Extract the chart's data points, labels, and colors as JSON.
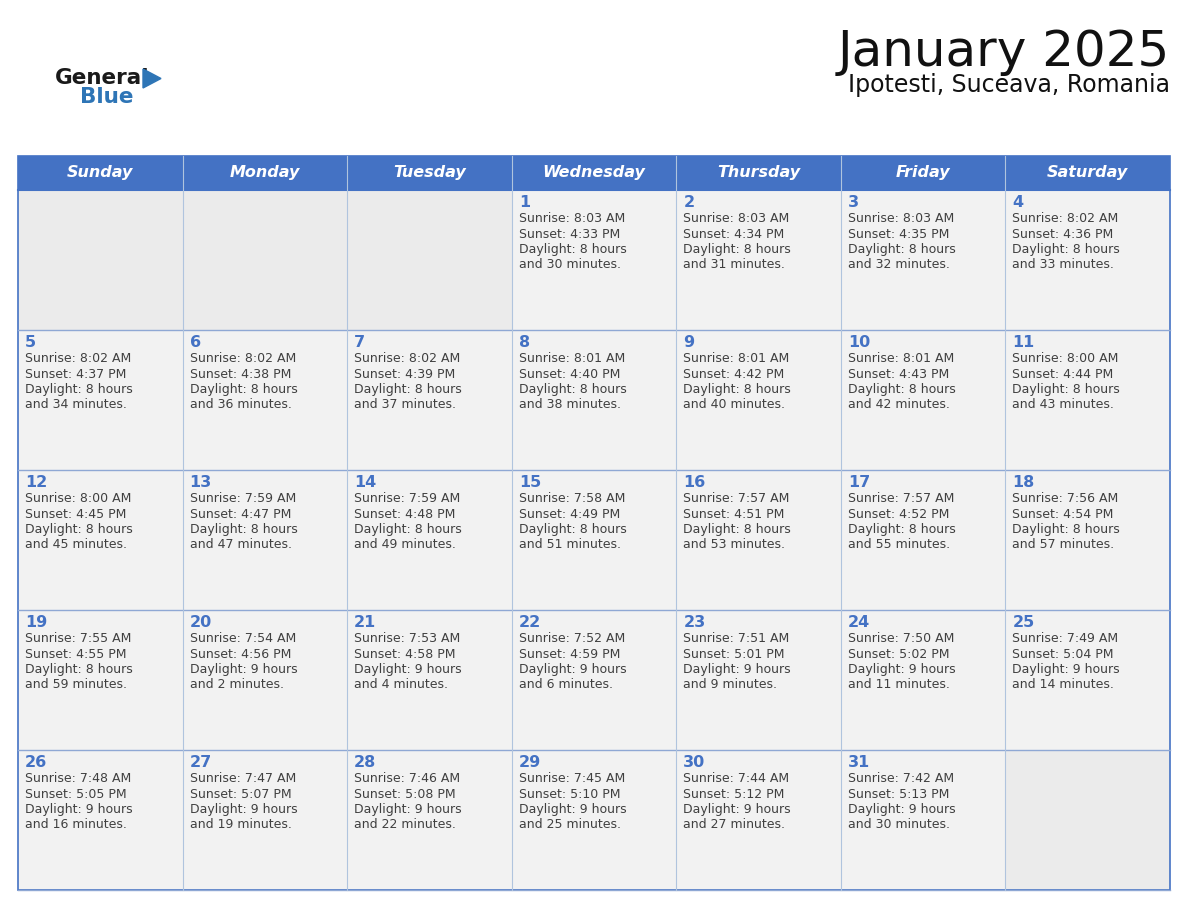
{
  "title": "January 2025",
  "subtitle": "Ipotesti, Suceava, Romania",
  "header_color": "#4472C4",
  "header_text_color": "#FFFFFF",
  "cell_bg_filled": "#F2F2F2",
  "cell_bg_empty": "#EBEBEB",
  "cell_border_color": "#4472C4",
  "row_divider_color": "#4472C4",
  "day_number_color": "#4472C4",
  "text_color": "#404040",
  "days_of_week": [
    "Sunday",
    "Monday",
    "Tuesday",
    "Wednesday",
    "Thursday",
    "Friday",
    "Saturday"
  ],
  "logo_general_color": "#1a1a1a",
  "logo_blue_color": "#2E75B6",
  "calendar_data": [
    [
      {
        "day": "",
        "lines": []
      },
      {
        "day": "",
        "lines": []
      },
      {
        "day": "",
        "lines": []
      },
      {
        "day": "1",
        "lines": [
          "Sunrise: 8:03 AM",
          "Sunset: 4:33 PM",
          "Daylight: 8 hours",
          "and 30 minutes."
        ]
      },
      {
        "day": "2",
        "lines": [
          "Sunrise: 8:03 AM",
          "Sunset: 4:34 PM",
          "Daylight: 8 hours",
          "and 31 minutes."
        ]
      },
      {
        "day": "3",
        "lines": [
          "Sunrise: 8:03 AM",
          "Sunset: 4:35 PM",
          "Daylight: 8 hours",
          "and 32 minutes."
        ]
      },
      {
        "day": "4",
        "lines": [
          "Sunrise: 8:02 AM",
          "Sunset: 4:36 PM",
          "Daylight: 8 hours",
          "and 33 minutes."
        ]
      }
    ],
    [
      {
        "day": "5",
        "lines": [
          "Sunrise: 8:02 AM",
          "Sunset: 4:37 PM",
          "Daylight: 8 hours",
          "and 34 minutes."
        ]
      },
      {
        "day": "6",
        "lines": [
          "Sunrise: 8:02 AM",
          "Sunset: 4:38 PM",
          "Daylight: 8 hours",
          "and 36 minutes."
        ]
      },
      {
        "day": "7",
        "lines": [
          "Sunrise: 8:02 AM",
          "Sunset: 4:39 PM",
          "Daylight: 8 hours",
          "and 37 minutes."
        ]
      },
      {
        "day": "8",
        "lines": [
          "Sunrise: 8:01 AM",
          "Sunset: 4:40 PM",
          "Daylight: 8 hours",
          "and 38 minutes."
        ]
      },
      {
        "day": "9",
        "lines": [
          "Sunrise: 8:01 AM",
          "Sunset: 4:42 PM",
          "Daylight: 8 hours",
          "and 40 minutes."
        ]
      },
      {
        "day": "10",
        "lines": [
          "Sunrise: 8:01 AM",
          "Sunset: 4:43 PM",
          "Daylight: 8 hours",
          "and 42 minutes."
        ]
      },
      {
        "day": "11",
        "lines": [
          "Sunrise: 8:00 AM",
          "Sunset: 4:44 PM",
          "Daylight: 8 hours",
          "and 43 minutes."
        ]
      }
    ],
    [
      {
        "day": "12",
        "lines": [
          "Sunrise: 8:00 AM",
          "Sunset: 4:45 PM",
          "Daylight: 8 hours",
          "and 45 minutes."
        ]
      },
      {
        "day": "13",
        "lines": [
          "Sunrise: 7:59 AM",
          "Sunset: 4:47 PM",
          "Daylight: 8 hours",
          "and 47 minutes."
        ]
      },
      {
        "day": "14",
        "lines": [
          "Sunrise: 7:59 AM",
          "Sunset: 4:48 PM",
          "Daylight: 8 hours",
          "and 49 minutes."
        ]
      },
      {
        "day": "15",
        "lines": [
          "Sunrise: 7:58 AM",
          "Sunset: 4:49 PM",
          "Daylight: 8 hours",
          "and 51 minutes."
        ]
      },
      {
        "day": "16",
        "lines": [
          "Sunrise: 7:57 AM",
          "Sunset: 4:51 PM",
          "Daylight: 8 hours",
          "and 53 minutes."
        ]
      },
      {
        "day": "17",
        "lines": [
          "Sunrise: 7:57 AM",
          "Sunset: 4:52 PM",
          "Daylight: 8 hours",
          "and 55 minutes."
        ]
      },
      {
        "day": "18",
        "lines": [
          "Sunrise: 7:56 AM",
          "Sunset: 4:54 PM",
          "Daylight: 8 hours",
          "and 57 minutes."
        ]
      }
    ],
    [
      {
        "day": "19",
        "lines": [
          "Sunrise: 7:55 AM",
          "Sunset: 4:55 PM",
          "Daylight: 8 hours",
          "and 59 minutes."
        ]
      },
      {
        "day": "20",
        "lines": [
          "Sunrise: 7:54 AM",
          "Sunset: 4:56 PM",
          "Daylight: 9 hours",
          "and 2 minutes."
        ]
      },
      {
        "day": "21",
        "lines": [
          "Sunrise: 7:53 AM",
          "Sunset: 4:58 PM",
          "Daylight: 9 hours",
          "and 4 minutes."
        ]
      },
      {
        "day": "22",
        "lines": [
          "Sunrise: 7:52 AM",
          "Sunset: 4:59 PM",
          "Daylight: 9 hours",
          "and 6 minutes."
        ]
      },
      {
        "day": "23",
        "lines": [
          "Sunrise: 7:51 AM",
          "Sunset: 5:01 PM",
          "Daylight: 9 hours",
          "and 9 minutes."
        ]
      },
      {
        "day": "24",
        "lines": [
          "Sunrise: 7:50 AM",
          "Sunset: 5:02 PM",
          "Daylight: 9 hours",
          "and 11 minutes."
        ]
      },
      {
        "day": "25",
        "lines": [
          "Sunrise: 7:49 AM",
          "Sunset: 5:04 PM",
          "Daylight: 9 hours",
          "and 14 minutes."
        ]
      }
    ],
    [
      {
        "day": "26",
        "lines": [
          "Sunrise: 7:48 AM",
          "Sunset: 5:05 PM",
          "Daylight: 9 hours",
          "and 16 minutes."
        ]
      },
      {
        "day": "27",
        "lines": [
          "Sunrise: 7:47 AM",
          "Sunset: 5:07 PM",
          "Daylight: 9 hours",
          "and 19 minutes."
        ]
      },
      {
        "day": "28",
        "lines": [
          "Sunrise: 7:46 AM",
          "Sunset: 5:08 PM",
          "Daylight: 9 hours",
          "and 22 minutes."
        ]
      },
      {
        "day": "29",
        "lines": [
          "Sunrise: 7:45 AM",
          "Sunset: 5:10 PM",
          "Daylight: 9 hours",
          "and 25 minutes."
        ]
      },
      {
        "day": "30",
        "lines": [
          "Sunrise: 7:44 AM",
          "Sunset: 5:12 PM",
          "Daylight: 9 hours",
          "and 27 minutes."
        ]
      },
      {
        "day": "31",
        "lines": [
          "Sunrise: 7:42 AM",
          "Sunset: 5:13 PM",
          "Daylight: 9 hours",
          "and 30 minutes."
        ]
      },
      {
        "day": "",
        "lines": []
      }
    ]
  ]
}
